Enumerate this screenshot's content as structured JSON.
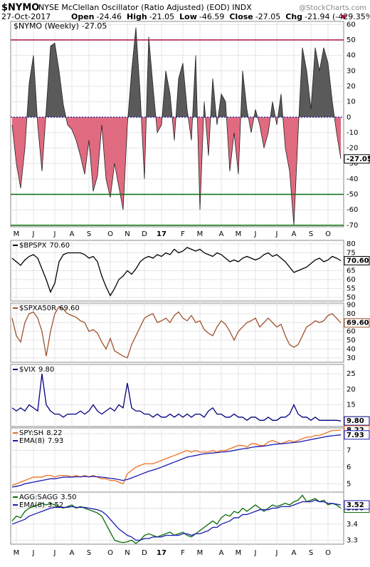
{
  "header": {
    "symbol": "$NYMO",
    "description": "NYSE McClellan Oscillator (Ratio Adjusted) (EOD) INDX",
    "date": "27-Oct-2017",
    "stats": [
      {
        "label": "Open",
        "value": "-24.46"
      },
      {
        "label": "High",
        "value": "-21.05"
      },
      {
        "label": "Low",
        "value": "-46.59"
      },
      {
        "label": "Close",
        "value": "-27.05"
      },
      {
        "label": "Chg",
        "value": "-21.94 (-429.35%)"
      }
    ],
    "source": "@StockCharts.com"
  },
  "chart_data": [
    {
      "type": "area",
      "label": "$NYMO (Weekly)",
      "last_label": "-27.05",
      "pos_color": "#5a5a5a",
      "neg_color": "#e06a80",
      "categories": [
        null,
        "M",
        null,
        null,
        null,
        "J",
        null,
        null,
        null,
        null,
        "J",
        null,
        null,
        null,
        "A",
        null,
        null,
        null,
        "S",
        null,
        null,
        null,
        null,
        "O",
        null,
        null,
        null,
        "N",
        null,
        null,
        null,
        "D",
        null,
        null,
        null,
        "17",
        null,
        null,
        null,
        null,
        "F",
        null,
        null,
        null,
        "M",
        null,
        null,
        null,
        null,
        "A",
        null,
        null,
        null,
        "M",
        null,
        null,
        null,
        "J",
        null,
        null,
        null,
        null,
        "J",
        null,
        null,
        null,
        "A",
        null,
        null,
        null,
        "S",
        null,
        null,
        null,
        "O",
        null,
        null,
        null
      ],
      "values": [
        -5,
        -30,
        -46,
        -20,
        22,
        40,
        -5,
        -35,
        5,
        46,
        48,
        30,
        8,
        -5,
        -8,
        -15,
        -25,
        -37,
        -15,
        -48,
        -38,
        -5,
        -40,
        -52,
        -30,
        -45,
        -60,
        -5,
        30,
        58,
        15,
        -40,
        52,
        20,
        -10,
        -5,
        30,
        15,
        -15,
        25,
        35,
        5,
        -15,
        40,
        -60,
        10,
        -25,
        25,
        -5,
        15,
        10,
        -35,
        -10,
        -37,
        30,
        5,
        -10,
        5,
        -5,
        -20,
        -10,
        10,
        -5,
        15,
        -20,
        -35,
        -70,
        -10,
        45,
        30,
        5,
        45,
        30,
        45,
        35,
        10,
        -10,
        -27.05
      ],
      "ref_lines": [
        {
          "value": 50,
          "color": "#b0103a"
        },
        {
          "value": 0,
          "color": "#1a1aa0"
        },
        {
          "value": -50,
          "color": "#0a6a0a"
        },
        {
          "value": -70,
          "color": "#0a6a0a"
        }
      ],
      "ylim": [
        -71,
        62
      ],
      "yticks": [
        60,
        50,
        40,
        30,
        20,
        10,
        0,
        -10,
        -20,
        -30,
        -40,
        -50,
        -60,
        -70
      ]
    },
    {
      "type": "line",
      "ylim": [
        48,
        82
      ],
      "yticks": [
        50,
        55,
        60,
        65,
        70,
        75,
        80
      ],
      "series": [
        {
          "name": "$BPSPX",
          "last_label": "70.60",
          "color": "#000000",
          "values": [
            72,
            70,
            68,
            71,
            73,
            74,
            72,
            66,
            60,
            53,
            58,
            70,
            74,
            75,
            75,
            75,
            75,
            74,
            72,
            73,
            70,
            62,
            56,
            51,
            55,
            60,
            62,
            65,
            63,
            66,
            70,
            72,
            73,
            72,
            74,
            73,
            75,
            74,
            77,
            75,
            76,
            78,
            77,
            76,
            77,
            75,
            74,
            73,
            75,
            74,
            72,
            70,
            71,
            70,
            72,
            73,
            72,
            71,
            72,
            74,
            75,
            73,
            74,
            72,
            70,
            67,
            64,
            65,
            66,
            67,
            69,
            71,
            72,
            70,
            71,
            73,
            72,
            70.6
          ]
        }
      ]
    },
    {
      "type": "line",
      "ylim": [
        25,
        92
      ],
      "yticks": [
        30,
        40,
        50,
        60,
        70,
        80,
        90
      ],
      "series": [
        {
          "name": "$SPXA50R",
          "last_label": "69.60",
          "color": "#a0522d",
          "values": [
            75,
            55,
            48,
            70,
            80,
            82,
            75,
            60,
            32,
            60,
            80,
            88,
            85,
            80,
            78,
            76,
            72,
            70,
            60,
            62,
            58,
            48,
            40,
            52,
            38,
            35,
            32,
            30,
            45,
            55,
            65,
            75,
            78,
            80,
            70,
            72,
            75,
            70,
            78,
            82,
            75,
            72,
            78,
            70,
            72,
            62,
            58,
            55,
            65,
            72,
            68,
            60,
            50,
            60,
            65,
            70,
            72,
            75,
            65,
            70,
            75,
            70,
            65,
            68,
            55,
            45,
            42,
            45,
            55,
            65,
            68,
            72,
            70,
            72,
            78,
            80,
            75,
            69.6
          ]
        }
      ]
    },
    {
      "type": "line",
      "ylim": [
        8,
        28
      ],
      "yticks": [
        15,
        20,
        25
      ],
      "series": [
        {
          "name": "$VIX",
          "last_label": "9.80",
          "color": "#00007f",
          "values": [
            14,
            13,
            14,
            13,
            15,
            14,
            13,
            25,
            15,
            13,
            12,
            12,
            11,
            12,
            12,
            12,
            13,
            12,
            13,
            15,
            13,
            12,
            13,
            14,
            13,
            15,
            14,
            22,
            14,
            13,
            13,
            12,
            12,
            11,
            12,
            11,
            11,
            12,
            11,
            12,
            11,
            12,
            11,
            12,
            12,
            11,
            13,
            14,
            12,
            12,
            11,
            11,
            12,
            11,
            11,
            10,
            11,
            11,
            10,
            10,
            11,
            10,
            10,
            11,
            11,
            12,
            15,
            12,
            11,
            11,
            10,
            11,
            10,
            10,
            10,
            10,
            10,
            9.8
          ]
        }
      ]
    },
    {
      "type": "line",
      "ylim": [
        4.5,
        8.35
      ],
      "yticks": [
        5,
        6,
        7,
        8
      ],
      "series": [
        {
          "name": "SPY:SH",
          "last_label": "8.22",
          "color": "#f07020",
          "values": [
            4.9,
            5.0,
            5.1,
            5.2,
            5.3,
            5.4,
            5.4,
            5.4,
            5.5,
            5.5,
            5.4,
            5.5,
            5.5,
            5.5,
            5.4,
            5.5,
            5.4,
            5.5,
            5.4,
            5.5,
            5.4,
            5.3,
            5.3,
            5.2,
            5.2,
            5.1,
            5.0,
            5.6,
            5.8,
            6.0,
            6.1,
            6.2,
            6.2,
            6.2,
            6.3,
            6.4,
            6.5,
            6.6,
            6.7,
            6.8,
            6.9,
            7.0,
            6.9,
            7.0,
            6.9,
            6.9,
            6.9,
            7.0,
            6.9,
            7.0,
            7.0,
            7.1,
            7.2,
            7.3,
            7.3,
            7.2,
            7.4,
            7.4,
            7.3,
            7.3,
            7.5,
            7.6,
            7.5,
            7.4,
            7.5,
            7.6,
            7.5,
            7.6,
            7.7,
            7.8,
            7.8,
            7.9,
            7.9,
            8.0,
            8.1,
            8.2,
            8.2,
            8.22
          ]
        },
        {
          "name": "EMA(8)",
          "last_label": "7.93",
          "color": "#1a1ab0",
          "values": [
            4.8,
            4.85,
            4.9,
            5.0,
            5.05,
            5.1,
            5.15,
            5.2,
            5.25,
            5.3,
            5.3,
            5.35,
            5.4,
            5.4,
            5.4,
            5.42,
            5.42,
            5.44,
            5.42,
            5.44,
            5.42,
            5.4,
            5.37,
            5.33,
            5.3,
            5.25,
            5.2,
            5.26,
            5.35,
            5.45,
            5.55,
            5.65,
            5.75,
            5.82,
            5.9,
            6.0,
            6.1,
            6.2,
            6.3,
            6.4,
            6.5,
            6.6,
            6.65,
            6.7,
            6.75,
            6.8,
            6.82,
            6.85,
            6.87,
            6.9,
            6.92,
            6.95,
            7.0,
            7.05,
            7.1,
            7.12,
            7.18,
            7.22,
            7.24,
            7.26,
            7.3,
            7.35,
            7.38,
            7.4,
            7.42,
            7.45,
            7.48,
            7.5,
            7.55,
            7.6,
            7.65,
            7.7,
            7.75,
            7.8,
            7.85,
            7.88,
            7.91,
            7.93
          ]
        }
      ]
    },
    {
      "type": "line",
      "ylim": [
        3.275,
        3.6
      ],
      "yticks": [
        3.3,
        3.4,
        3.5
      ],
      "series": [
        {
          "name": "AGG:SAGG",
          "last_label": "3.50",
          "color": "#0a6a0a",
          "values": [
            3.42,
            3.45,
            3.44,
            3.48,
            3.5,
            3.51,
            3.52,
            3.53,
            3.52,
            3.53,
            3.52,
            3.51,
            3.5,
            3.51,
            3.52,
            3.5,
            3.51,
            3.5,
            3.49,
            3.48,
            3.47,
            3.45,
            3.4,
            3.35,
            3.3,
            3.29,
            3.285,
            3.29,
            3.3,
            3.28,
            3.3,
            3.33,
            3.34,
            3.33,
            3.32,
            3.33,
            3.34,
            3.35,
            3.33,
            3.34,
            3.35,
            3.33,
            3.32,
            3.34,
            3.36,
            3.38,
            3.4,
            3.42,
            3.4,
            3.44,
            3.46,
            3.45,
            3.48,
            3.47,
            3.5,
            3.48,
            3.5,
            3.52,
            3.5,
            3.48,
            3.5,
            3.52,
            3.51,
            3.52,
            3.53,
            3.52,
            3.54,
            3.55,
            3.58,
            3.54,
            3.55,
            3.56,
            3.54,
            3.55,
            3.52,
            3.53,
            3.52,
            3.5
          ]
        },
        {
          "name": "EMA(8)",
          "last_label": "3.52",
          "color": "#1a1ab0",
          "values": [
            3.4,
            3.41,
            3.42,
            3.43,
            3.45,
            3.46,
            3.47,
            3.48,
            3.49,
            3.5,
            3.505,
            3.505,
            3.505,
            3.505,
            3.51,
            3.505,
            3.505,
            3.505,
            3.5,
            3.495,
            3.49,
            3.48,
            3.46,
            3.43,
            3.4,
            3.37,
            3.35,
            3.33,
            3.32,
            3.3,
            3.3,
            3.31,
            3.31,
            3.32,
            3.32,
            3.32,
            3.33,
            3.33,
            3.33,
            3.33,
            3.34,
            3.34,
            3.33,
            3.34,
            3.34,
            3.35,
            3.36,
            3.38,
            3.38,
            3.4,
            3.41,
            3.42,
            3.44,
            3.44,
            3.46,
            3.46,
            3.47,
            3.48,
            3.49,
            3.49,
            3.49,
            3.5,
            3.5,
            3.51,
            3.51,
            3.51,
            3.52,
            3.53,
            3.54,
            3.54,
            3.54,
            3.55,
            3.54,
            3.54,
            3.53,
            3.53,
            3.525,
            3.52
          ]
        }
      ]
    }
  ]
}
